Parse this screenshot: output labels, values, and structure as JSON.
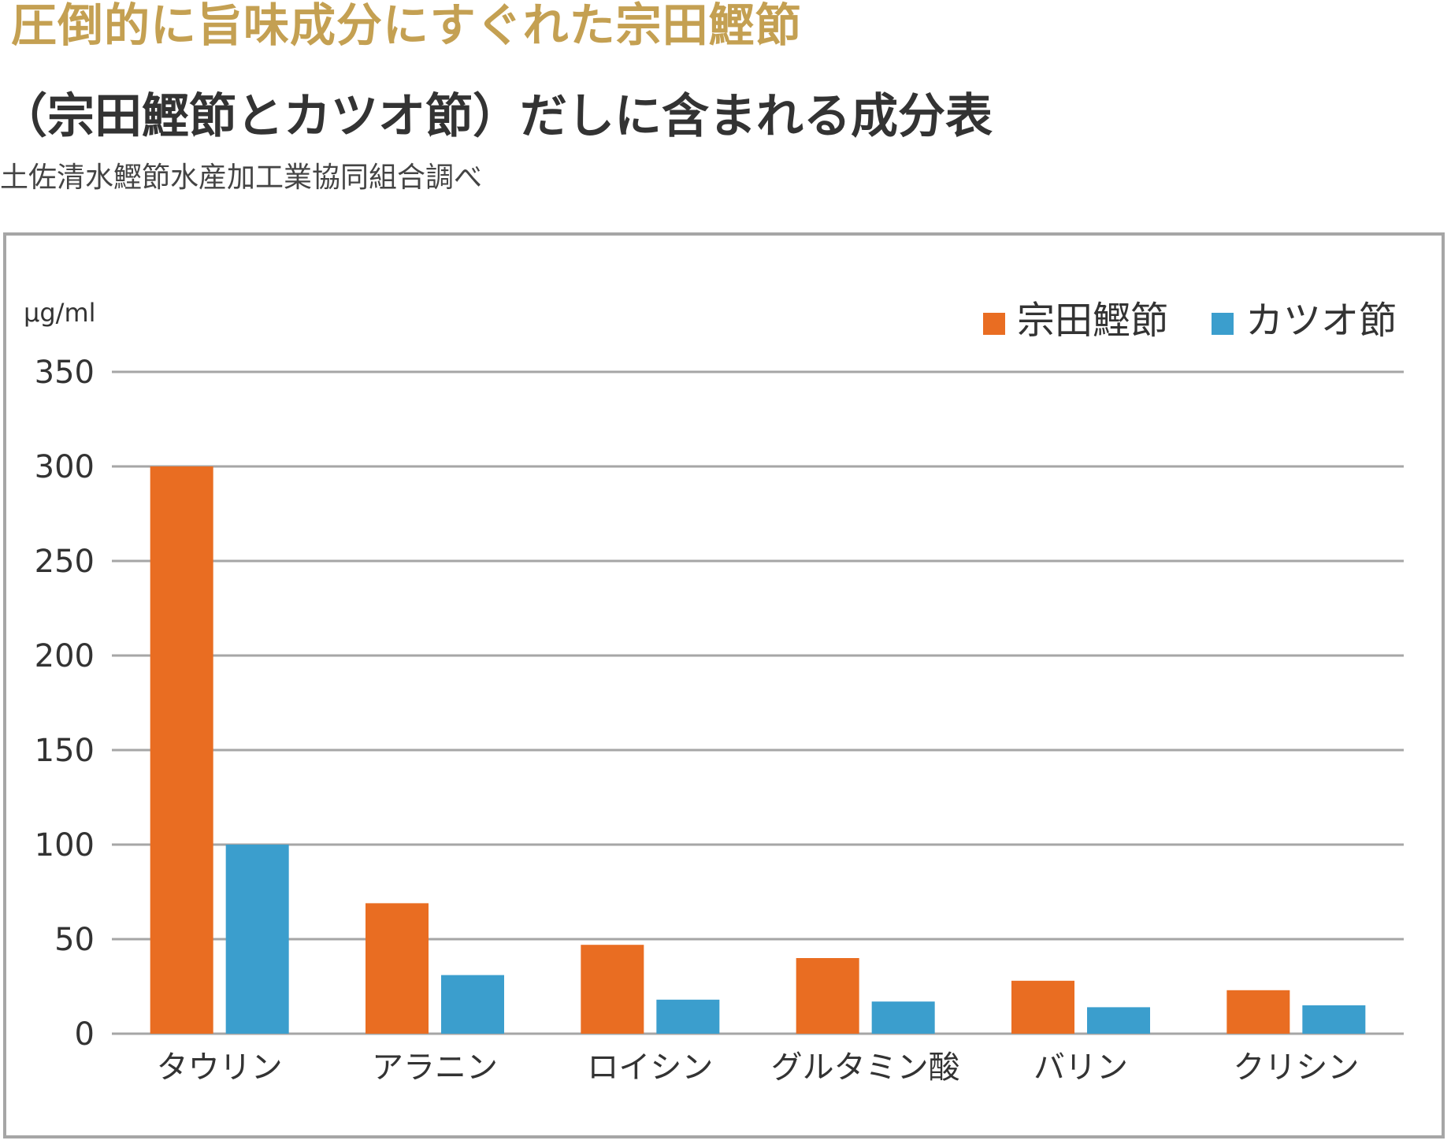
{
  "headline": "圧倒的に旨味成分にすぐれた宗田鰹節",
  "title": "（宗田鰹節とカツオ節）だしに含まれる成分表",
  "source": "土佐清水鰹節水産加工業協同組合調べ",
  "colors": {
    "series1": "#e96d22",
    "series2": "#3b9ecd",
    "grid": "#a6a6a6",
    "headline": "#c4a052"
  },
  "chart_data": {
    "type": "bar",
    "ylabel": "μg/ml",
    "ylim": [
      0,
      350
    ],
    "yticks": [
      "0",
      "50",
      "100",
      "150",
      "200",
      "250",
      "300",
      "350"
    ],
    "grid": true,
    "legend_position": "top-right",
    "categories": [
      "タウリン",
      "アラニン",
      "ロイシン",
      "グルタミン酸",
      "バリン",
      "クリシン"
    ],
    "series": [
      {
        "name": "宗田鰹節",
        "values": [
          300,
          69,
          47,
          40,
          28,
          23
        ]
      },
      {
        "name": "カツオ節",
        "values": [
          100,
          31,
          18,
          17,
          14,
          15
        ]
      }
    ]
  }
}
